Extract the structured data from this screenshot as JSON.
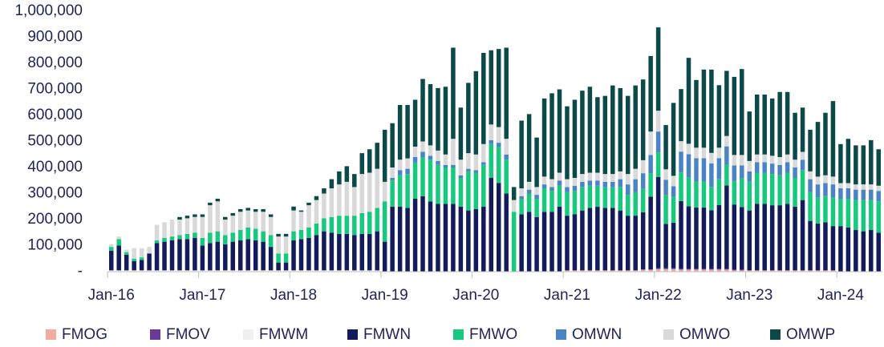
{
  "chart_data": {
    "type": "stacked_bar",
    "categories": [
      "Jan-16",
      null,
      null,
      null,
      null,
      null,
      null,
      null,
      null,
      null,
      null,
      null,
      "Jan-17",
      null,
      null,
      null,
      null,
      null,
      null,
      null,
      null,
      null,
      null,
      null,
      "Jan-18",
      null,
      null,
      null,
      null,
      null,
      null,
      null,
      null,
      null,
      null,
      null,
      "Jan-19",
      null,
      null,
      null,
      null,
      null,
      null,
      null,
      null,
      null,
      null,
      null,
      "Jan-20",
      null,
      null,
      null,
      null,
      null,
      null,
      null,
      null,
      null,
      null,
      null,
      "Jan-21",
      null,
      null,
      null,
      null,
      null,
      null,
      null,
      null,
      null,
      null,
      null,
      "Jan-22",
      null,
      null,
      null,
      null,
      null,
      null,
      null,
      null,
      null,
      null,
      null,
      "Jan-23",
      null,
      null,
      null,
      null,
      null,
      null,
      null,
      null,
      null,
      null,
      null,
      "Jan-24",
      null,
      null,
      null,
      null,
      null
    ],
    "series": [
      {
        "name": "FMOG",
        "color": "#f4aa9f",
        "values": [
          0,
          0,
          0,
          0,
          0,
          0,
          0,
          0,
          0,
          0,
          0,
          0,
          0,
          0,
          0,
          0,
          0,
          0,
          0,
          0,
          0,
          0,
          0,
          0,
          0,
          0,
          0,
          0,
          0,
          0,
          0,
          0,
          0,
          0,
          0,
          0,
          0,
          0,
          0,
          0,
          0,
          0,
          0,
          0,
          0,
          0,
          0,
          0,
          0,
          0,
          0,
          0,
          0,
          0,
          0,
          0,
          0,
          0,
          0,
          0,
          5000,
          5000,
          5000,
          5000,
          5000,
          5000,
          5000,
          5000,
          5000,
          5000,
          8000,
          8000,
          10000,
          10000,
          10000,
          8000,
          8000,
          8000,
          8000,
          8000,
          8000,
          8000,
          5000,
          5000,
          5000,
          5000,
          5000,
          5000,
          5000,
          5000,
          5000,
          5000,
          5000,
          5000,
          5000,
          5000,
          0,
          0,
          0,
          0,
          0,
          0
        ]
      },
      {
        "name": "FMOV",
        "color": "#6b3a96",
        "values": [
          0,
          0,
          0,
          0,
          0,
          0,
          0,
          0,
          0,
          0,
          0,
          0,
          0,
          0,
          0,
          0,
          0,
          0,
          0,
          0,
          0,
          0,
          0,
          0,
          0,
          0,
          0,
          0,
          0,
          0,
          0,
          0,
          0,
          0,
          0,
          0,
          0,
          0,
          0,
          0,
          0,
          0,
          0,
          0,
          0,
          0,
          0,
          0,
          0,
          0,
          0,
          0,
          0,
          0,
          0,
          0,
          0,
          0,
          0,
          0,
          0,
          0,
          0,
          0,
          0,
          0,
          0,
          0,
          0,
          0,
          0,
          0,
          3000,
          3000,
          3000,
          3000,
          3000,
          3000,
          3000,
          3000,
          3000,
          3000,
          3000,
          3000,
          0,
          0,
          0,
          0,
          0,
          0,
          0,
          0,
          0,
          0,
          0,
          0,
          0,
          0,
          0,
          0,
          0,
          0
        ]
      },
      {
        "name": "FMWM",
        "color": "#f0f0f0",
        "values": [
          5000,
          5000,
          5000,
          5000,
          5000,
          5000,
          5000,
          5000,
          5000,
          5000,
          5000,
          5000,
          5000,
          5000,
          5000,
          5000,
          5000,
          5000,
          5000,
          5000,
          5000,
          5000,
          5000,
          5000,
          5000,
          5000,
          5000,
          5000,
          5000,
          5000,
          5000,
          5000,
          5000,
          5000,
          5000,
          5000,
          0,
          0,
          0,
          0,
          0,
          0,
          0,
          0,
          0,
          0,
          0,
          0,
          0,
          0,
          0,
          0,
          0,
          0,
          0,
          0,
          0,
          0,
          0,
          0,
          0,
          0,
          0,
          0,
          0,
          0,
          0,
          0,
          0,
          0,
          0,
          0,
          0,
          0,
          0,
          0,
          0,
          0,
          0,
          0,
          0,
          0,
          0,
          0,
          0,
          0,
          0,
          0,
          0,
          0,
          0,
          0,
          0,
          0,
          0,
          0,
          0,
          0,
          0,
          0,
          0,
          0
        ]
      },
      {
        "name": "FMWN",
        "color": "#141b5c",
        "values": [
          75000,
          95000,
          60000,
          35000,
          40000,
          65000,
          105000,
          110000,
          115000,
          120000,
          120000,
          125000,
          95000,
          105000,
          110000,
          100000,
          110000,
          115000,
          120000,
          115000,
          110000,
          90000,
          30000,
          30000,
          115000,
          120000,
          125000,
          135000,
          150000,
          145000,
          140000,
          140000,
          135000,
          140000,
          140000,
          150000,
          115000,
          250000,
          250000,
          245000,
          280000,
          290000,
          270000,
          260000,
          260000,
          260000,
          250000,
          235000,
          240000,
          250000,
          360000,
          340000,
          300000,
          0,
          220000,
          230000,
          210000,
          230000,
          230000,
          250000,
          210000,
          215000,
          230000,
          240000,
          245000,
          240000,
          240000,
          230000,
          210000,
          210000,
          220000,
          280000,
          350000,
          170000,
          175000,
          260000,
          240000,
          235000,
          235000,
          225000,
          245000,
          320000,
          250000,
          240000,
          230000,
          255000,
          255000,
          250000,
          250000,
          255000,
          245000,
          270000,
          190000,
          180000,
          185000,
          170000,
          175000,
          170000,
          160000,
          155000,
          160000,
          150000
        ]
      },
      {
        "name": "FMWO",
        "color": "#17c97d",
        "values": [
          15000,
          25000,
          10000,
          10000,
          10000,
          0,
          10000,
          15000,
          15000,
          15000,
          20000,
          20000,
          30000,
          40000,
          40000,
          35000,
          35000,
          40000,
          45000,
          45000,
          40000,
          45000,
          35000,
          35000,
          35000,
          35000,
          40000,
          45000,
          50000,
          60000,
          70000,
          70000,
          75000,
          80000,
          85000,
          90000,
          155000,
          100000,
          120000,
          130000,
          140000,
          150000,
          160000,
          150000,
          140000,
          140000,
          110000,
          150000,
          140000,
          160000,
          130000,
          140000,
          130000,
          230000,
          60000,
          70000,
          70000,
          90000,
          80000,
          80000,
          90000,
          90000,
          90000,
          85000,
          80000,
          80000,
          80000,
          90000,
          80000,
          90000,
          90000,
          90000,
          95000,
          110000,
          100000,
          110000,
          110000,
          100000,
          100000,
          90000,
          100000,
          80000,
          90000,
          110000,
          110000,
          120000,
          120000,
          120000,
          115000,
          120000,
          110000,
          115000,
          110000,
          100000,
          100000,
          110000,
          105000,
          110000,
          115000,
          120000,
          115000,
          120000
        ]
      },
      {
        "name": "OMWN",
        "color": "#4a84c4",
        "values": [
          0,
          0,
          0,
          0,
          0,
          0,
          0,
          0,
          0,
          0,
          0,
          0,
          0,
          0,
          0,
          0,
          0,
          0,
          0,
          0,
          0,
          0,
          0,
          0,
          0,
          0,
          0,
          0,
          0,
          0,
          0,
          0,
          0,
          0,
          0,
          0,
          0,
          10000,
          20000,
          20000,
          20000,
          20000,
          15000,
          15000,
          10000,
          10000,
          10000,
          10000,
          10000,
          10000,
          15000,
          15000,
          20000,
          0,
          10000,
          15000,
          15000,
          15000,
          15000,
          20000,
          20000,
          20000,
          20000,
          20000,
          20000,
          20000,
          20000,
          30000,
          40000,
          50000,
          60000,
          70000,
          80000,
          60000,
          40000,
          80000,
          90000,
          90000,
          90000,
          90000,
          80000,
          70000,
          60000,
          50000,
          40000,
          40000,
          40000,
          40000,
          40000,
          40000,
          40000,
          40000,
          50000,
          50000,
          50000,
          50000,
          40000,
          40000,
          40000,
          40000,
          40000,
          40000
        ]
      },
      {
        "name": "OMWO",
        "color": "#d9d9d9",
        "values": [
          10000,
          10000,
          10000,
          40000,
          35000,
          25000,
          60000,
          60000,
          65000,
          60000,
          60000,
          60000,
          80000,
          105000,
          115000,
          60000,
          65000,
          70000,
          65000,
          65000,
          75000,
          70000,
          65000,
          65000,
          80000,
          70000,
          85000,
          90000,
          95000,
          110000,
          120000,
          130000,
          110000,
          150000,
          150000,
          150000,
          75000,
          40000,
          40000,
          40000,
          40000,
          40000,
          40000,
          40000,
          40000,
          100000,
          60000,
          60000,
          60000,
          70000,
          60000,
          60000,
          60000,
          45000,
          30000,
          30000,
          30000,
          30000,
          30000,
          30000,
          30000,
          30000,
          30000,
          30000,
          30000,
          30000,
          30000,
          30000,
          40000,
          40000,
          50000,
          90000,
          80000,
          40000,
          40000,
          40000,
          40000,
          40000,
          40000,
          40000,
          40000,
          40000,
          40000,
          40000,
          40000,
          30000,
          30000,
          30000,
          30000,
          30000,
          30000,
          30000,
          30000,
          30000,
          30000,
          30000,
          20000,
          20000,
          20000,
          20000,
          20000,
          20000
        ]
      },
      {
        "name": "OMWP",
        "color": "#0c4a49",
        "values": [
          0,
          0,
          0,
          0,
          0,
          0,
          0,
          0,
          0,
          10000,
          10000,
          10000,
          10000,
          10000,
          10000,
          10000,
          10000,
          10000,
          10000,
          10000,
          10000,
          10000,
          10000,
          10000,
          15000,
          5000,
          10000,
          15000,
          20000,
          35000,
          50000,
          60000,
          50000,
          80000,
          90000,
          100000,
          200000,
          170000,
          210000,
          205000,
          180000,
          240000,
          235000,
          240000,
          260000,
          350000,
          200000,
          270000,
          320000,
          350000,
          285000,
          300000,
          350000,
          50000,
          260000,
          260000,
          190000,
          300000,
          330000,
          320000,
          280000,
          300000,
          320000,
          330000,
          290000,
          300000,
          340000,
          320000,
          300000,
          320000,
          310000,
          290000,
          320000,
          170000,
          280000,
          200000,
          330000,
          260000,
          300000,
          320000,
          240000,
          250000,
          300000,
          330000,
          190000,
          230000,
          230000,
          220000,
          250000,
          240000,
          180000,
          170000,
          160000,
          210000,
          240000,
          290000,
          150000,
          170000,
          150000,
          150000,
          170000,
          140000
        ]
      }
    ],
    "ylim": [
      0,
      1000000
    ],
    "yticks": [
      {
        "value": 0,
        "label": "-"
      },
      {
        "value": 100000,
        "label": "100,000"
      },
      {
        "value": 200000,
        "label": "200,000"
      },
      {
        "value": 300000,
        "label": "300,000"
      },
      {
        "value": 400000,
        "label": "400,000"
      },
      {
        "value": 500000,
        "label": "500,000"
      },
      {
        "value": 600000,
        "label": "600,000"
      },
      {
        "value": 700000,
        "label": "700,000"
      },
      {
        "value": 800000,
        "label": "800,000"
      },
      {
        "value": 900000,
        "label": "900,000"
      },
      {
        "value": 1000000,
        "label": "1,000,000"
      }
    ],
    "legend": "bottom"
  }
}
